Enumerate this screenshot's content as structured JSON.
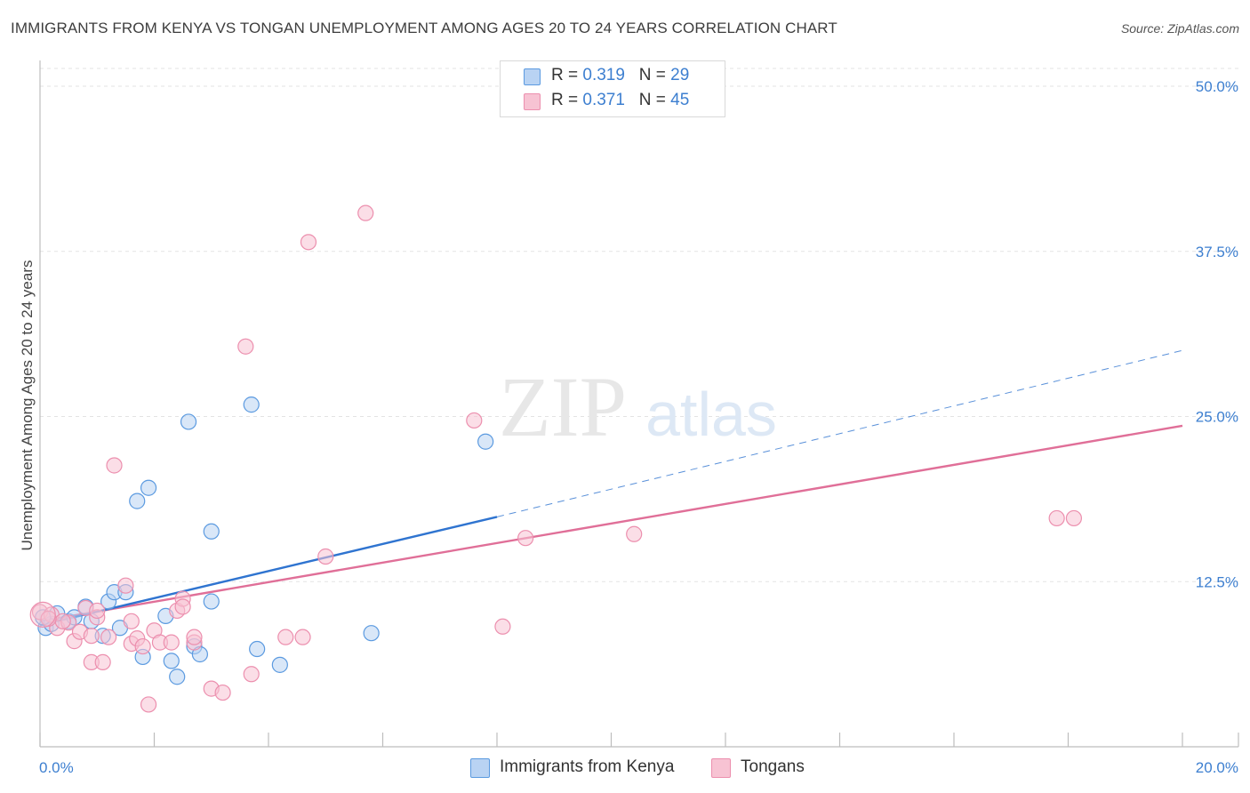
{
  "title": "IMMIGRANTS FROM KENYA VS TONGAN UNEMPLOYMENT AMONG AGES 20 TO 24 YEARS CORRELATION CHART",
  "source": "Source: ZipAtlas.com",
  "watermark": {
    "zip": "ZIP",
    "atlas": "atlas"
  },
  "legend": {
    "kenya": {
      "r_label": "R = ",
      "r_value": "0.319",
      "n_label": "N = ",
      "n_value": "29"
    },
    "tongan": {
      "r_label": "R = ",
      "r_value": "0.371",
      "n_label": "N = ",
      "n_value": "45"
    }
  },
  "chart_data": {
    "type": "scatter",
    "title": "IMMIGRANTS FROM KENYA VS TONGAN UNEMPLOYMENT AMONG AGES 20 TO 24 YEARS CORRELATION CHART",
    "xlabel": "",
    "ylabel": "Unemployment Among Ages 20 to 24 years",
    "xlim": [
      0,
      20
    ],
    "ylim": [
      0,
      50
    ],
    "x_tick_labels": [
      "0.0%",
      "20.0%"
    ],
    "y_ticks": [
      12.5,
      25.0,
      37.5,
      50.0
    ],
    "y_tick_labels": [
      "12.5%",
      "25.0%",
      "37.5%",
      "50.0%"
    ],
    "grid": true,
    "colors": {
      "kenya": "#5b9ae0",
      "kenya_fill": "#b9d3f3",
      "kenya_line": "#2f74d0",
      "tongan": "#ec8fae",
      "tongan_fill": "#f7c3d3",
      "tongan_line": "#e06f98",
      "axis_label": "#3d7fd0"
    },
    "series": [
      {
        "name": "Immigrants from Kenya",
        "points": [
          [
            0.1,
            9.0
          ],
          [
            0.2,
            9.3
          ],
          [
            0.3,
            10.1
          ],
          [
            0.5,
            9.5
          ],
          [
            0.6,
            9.8
          ],
          [
            0.8,
            10.6
          ],
          [
            0.9,
            9.5
          ],
          [
            1.1,
            8.4
          ],
          [
            1.2,
            11.0
          ],
          [
            1.3,
            11.7
          ],
          [
            1.4,
            9.0
          ],
          [
            1.5,
            11.7
          ],
          [
            1.7,
            18.6
          ],
          [
            1.8,
            6.8
          ],
          [
            1.9,
            19.6
          ],
          [
            2.2,
            9.9
          ],
          [
            2.3,
            6.5
          ],
          [
            2.4,
            5.3
          ],
          [
            2.6,
            24.6
          ],
          [
            2.7,
            7.6
          ],
          [
            2.8,
            7.0
          ],
          [
            3.0,
            16.3
          ],
          [
            3.0,
            11.0
          ],
          [
            3.7,
            25.9
          ],
          [
            3.8,
            7.4
          ],
          [
            4.2,
            6.2
          ],
          [
            5.8,
            8.6
          ],
          [
            7.8,
            23.1
          ],
          [
            0.05,
            9.8
          ]
        ],
        "trend": {
          "solid": [
            [
              0,
              9.2
            ],
            [
              8.0,
              17.4
            ]
          ],
          "dashed": [
            [
              8.0,
              17.4
            ],
            [
              20.0,
              30.0
            ]
          ]
        }
      },
      {
        "name": "Tongans",
        "points": [
          [
            0.0,
            10.2
          ],
          [
            0.2,
            10.0
          ],
          [
            0.3,
            9.0
          ],
          [
            0.5,
            9.4
          ],
          [
            0.6,
            8.0
          ],
          [
            0.7,
            8.7
          ],
          [
            0.8,
            10.5
          ],
          [
            0.9,
            8.4
          ],
          [
            0.9,
            6.4
          ],
          [
            1.0,
            9.8
          ],
          [
            1.1,
            6.4
          ],
          [
            1.2,
            8.3
          ],
          [
            1.3,
            21.3
          ],
          [
            1.5,
            12.2
          ],
          [
            1.6,
            7.8
          ],
          [
            1.6,
            9.5
          ],
          [
            1.7,
            8.2
          ],
          [
            1.8,
            7.6
          ],
          [
            1.9,
            3.2
          ],
          [
            2.0,
            8.8
          ],
          [
            2.1,
            7.9
          ],
          [
            2.3,
            7.9
          ],
          [
            2.4,
            10.3
          ],
          [
            2.5,
            11.2
          ],
          [
            2.5,
            10.6
          ],
          [
            2.7,
            7.9
          ],
          [
            2.7,
            8.3
          ],
          [
            3.0,
            4.4
          ],
          [
            3.2,
            4.1
          ],
          [
            3.6,
            30.3
          ],
          [
            3.7,
            5.5
          ],
          [
            4.3,
            8.3
          ],
          [
            4.6,
            8.3
          ],
          [
            4.7,
            38.2
          ],
          [
            5.0,
            14.4
          ],
          [
            5.7,
            40.4
          ],
          [
            7.6,
            24.7
          ],
          [
            8.1,
            9.1
          ],
          [
            8.5,
            15.8
          ],
          [
            10.4,
            16.1
          ],
          [
            17.8,
            17.3
          ],
          [
            18.1,
            17.3
          ],
          [
            0.4,
            9.5
          ],
          [
            1.0,
            10.3
          ],
          [
            0.15,
            9.7
          ]
        ],
        "trend": {
          "solid": [
            [
              0,
              9.5
            ],
            [
              20.0,
              24.3
            ]
          ]
        }
      }
    ]
  },
  "bottom_legend": {
    "kenya": "Immigrants from Kenya",
    "tongan": "Tongans"
  }
}
